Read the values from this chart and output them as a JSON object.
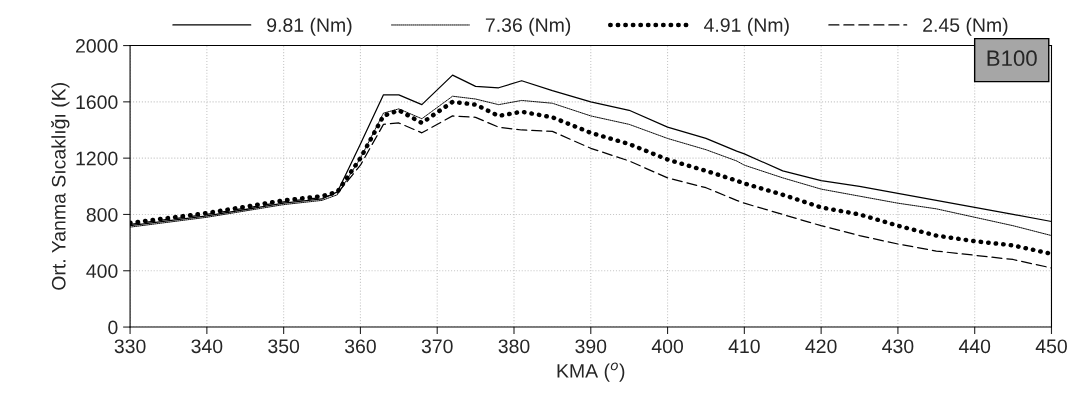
{
  "chart_data": {
    "type": "line",
    "xlabel": "KMA ($^{o}$)",
    "ylabel": "Ort. Yanma Sıcaklığı (K)",
    "x": [
      330,
      340,
      350,
      355,
      357,
      360,
      363,
      365,
      368,
      372,
      375,
      378,
      381,
      385,
      390,
      395,
      400,
      405,
      409,
      410,
      415,
      420,
      425,
      430,
      435,
      440,
      445,
      450
    ],
    "series": [
      {
        "name": "9.81 (Nm)",
        "color": "#000000",
        "line_style": "solid",
        "values": [
          720,
          790,
          880,
          910,
          960,
          1300,
          1650,
          1650,
          1580,
          1790,
          1710,
          1700,
          1750,
          1680,
          1600,
          1540,
          1420,
          1340,
          1250,
          1230,
          1110,
          1040,
          1000,
          950,
          900,
          850,
          800,
          750
        ]
      },
      {
        "name": "7.36 (Nm)",
        "color": "#000000",
        "line_style": "dotted",
        "values": [
          710,
          780,
          870,
          900,
          940,
          1200,
          1520,
          1550,
          1480,
          1640,
          1620,
          1580,
          1610,
          1590,
          1500,
          1440,
          1340,
          1260,
          1180,
          1150,
          1060,
          980,
          930,
          880,
          840,
          780,
          720,
          650
        ]
      },
      {
        "name": "4.91 (Nm)",
        "color": "#000000",
        "line_style": "dotted",
        "values": [
          740,
          810,
          900,
          930,
          960,
          1200,
          1500,
          1540,
          1450,
          1600,
          1580,
          1500,
          1530,
          1490,
          1380,
          1300,
          1190,
          1110,
          1040,
          1020,
          940,
          850,
          800,
          720,
          650,
          610,
          580,
          520
        ]
      },
      {
        "name": "2.45 (Nm)",
        "color": "#000000",
        "line_style": "dashed",
        "values": [
          730,
          800,
          890,
          920,
          950,
          1150,
          1440,
          1450,
          1380,
          1500,
          1490,
          1420,
          1400,
          1390,
          1270,
          1180,
          1060,
          990,
          900,
          880,
          800,
          720,
          650,
          590,
          540,
          510,
          480,
          420
        ]
      }
    ],
    "xlim": [
      330,
      450
    ],
    "xticks": [
      330,
      340,
      350,
      360,
      370,
      380,
      390,
      400,
      410,
      420,
      430,
      440,
      450
    ],
    "ylim": [
      0,
      2000
    ],
    "yticks": [
      0,
      400,
      800,
      1200,
      1600,
      2000
    ],
    "grid": true,
    "legend": "top",
    "annotations": [
      "B100"
    ]
  }
}
